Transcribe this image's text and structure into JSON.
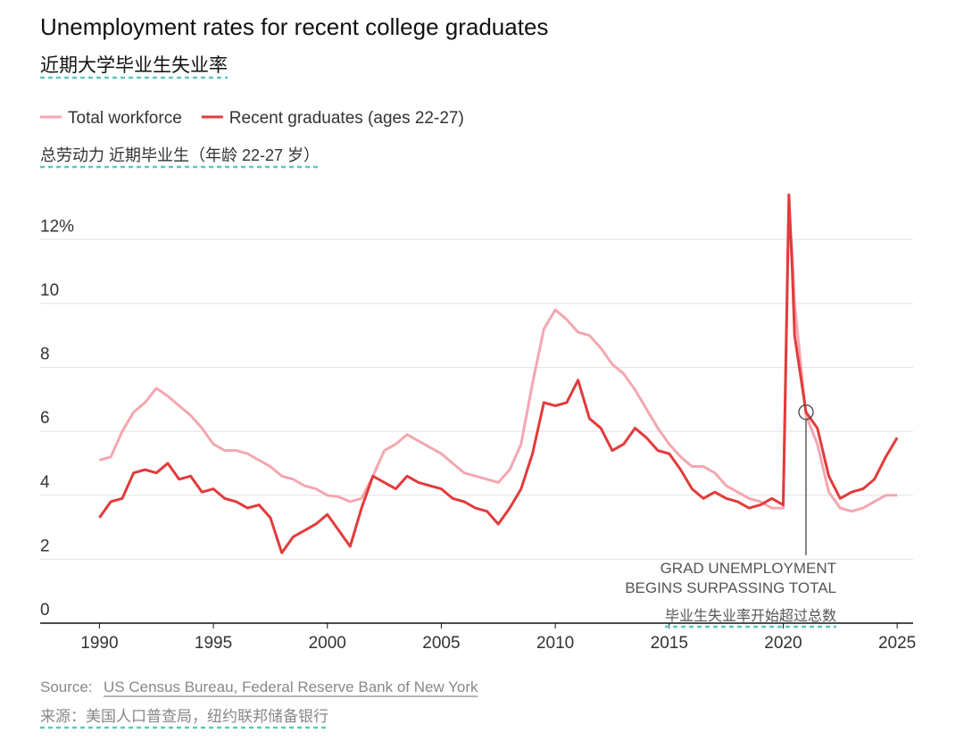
{
  "chart_data": {
    "type": "line",
    "title": "Unemployment rates for recent college graduates",
    "subtitle_zh": "近期大学毕业生失业率",
    "legend_zh": "总劳动力 近期毕业生（年龄 22-27 岁）",
    "x": [
      1990,
      1990.5,
      1991,
      1991.5,
      1992,
      1992.5,
      1993,
      1993.5,
      1994,
      1994.5,
      1995,
      1995.5,
      1996,
      1996.5,
      1997,
      1997.5,
      1998,
      1998.5,
      1999,
      1999.5,
      2000,
      2000.5,
      2001,
      2001.5,
      2002,
      2002.5,
      2003,
      2003.5,
      2004,
      2004.5,
      2005,
      2005.5,
      2006,
      2006.5,
      2007,
      2007.5,
      2008,
      2008.5,
      2009,
      2009.5,
      2010,
      2010.5,
      2011,
      2011.5,
      2012,
      2012.5,
      2013,
      2013.5,
      2014,
      2014.5,
      2015,
      2015.5,
      2016,
      2016.5,
      2017,
      2017.5,
      2018,
      2018.5,
      2019,
      2019.5,
      2020,
      2020.25,
      2020.4,
      2020.5,
      2021,
      2021.5,
      2022,
      2022.5,
      2023,
      2023.5,
      2024,
      2024.5,
      2025
    ],
    "series": [
      {
        "name": "Total workforce",
        "color": "#f4a7b0",
        "values": [
          5.1,
          5.2,
          6.0,
          6.6,
          6.9,
          7.35,
          7.1,
          6.8,
          6.5,
          6.1,
          5.6,
          5.4,
          5.4,
          5.3,
          5.1,
          4.9,
          4.6,
          4.5,
          4.3,
          4.2,
          4.0,
          3.95,
          3.8,
          3.9,
          4.6,
          5.4,
          5.6,
          5.9,
          5.7,
          5.5,
          5.3,
          5.0,
          4.7,
          4.6,
          4.5,
          4.4,
          4.8,
          5.6,
          7.5,
          9.2,
          9.8,
          9.5,
          9.1,
          9.0,
          8.6,
          8.1,
          7.8,
          7.3,
          6.7,
          6.1,
          5.6,
          5.2,
          4.9,
          4.9,
          4.7,
          4.3,
          4.1,
          3.9,
          3.8,
          3.6,
          3.6,
          13.0,
          11.5,
          10.0,
          6.5,
          5.6,
          4.1,
          3.6,
          3.5,
          3.6,
          3.8,
          4.0,
          4.0
        ]
      },
      {
        "name": "Recent graduates (ages 22-27)",
        "color": "#e23b3b",
        "values": [
          3.3,
          3.8,
          3.9,
          4.7,
          4.8,
          4.7,
          5.0,
          4.5,
          4.6,
          4.1,
          4.2,
          3.9,
          3.8,
          3.6,
          3.7,
          3.3,
          2.2,
          2.7,
          2.9,
          3.1,
          3.4,
          2.9,
          2.4,
          3.6,
          4.6,
          4.4,
          4.2,
          4.6,
          4.4,
          4.3,
          4.2,
          3.9,
          3.8,
          3.6,
          3.5,
          3.1,
          3.6,
          4.2,
          5.3,
          6.9,
          6.8,
          6.9,
          7.6,
          6.4,
          6.1,
          5.4,
          5.6,
          6.1,
          5.8,
          5.4,
          5.3,
          4.8,
          4.2,
          3.9,
          4.1,
          3.9,
          3.8,
          3.6,
          3.7,
          3.9,
          3.7,
          13.4,
          11.0,
          9.0,
          6.6,
          6.1,
          4.6,
          3.9,
          4.1,
          4.2,
          4.5,
          5.2,
          5.8
        ]
      }
    ],
    "xlim": [
      1987.4,
      2025.7
    ],
    "ylim": [
      0,
      13.6
    ],
    "xticks": [
      1990,
      1995,
      2000,
      2005,
      2010,
      2015,
      2020,
      2025
    ],
    "yticks": [
      0,
      2,
      4,
      6,
      8,
      10,
      {
        "value": 12,
        "label": "12%"
      }
    ],
    "grid": true,
    "annotation": {
      "x": 2021,
      "y": 6.6,
      "lines": [
        "GRAD UNEMPLOYMENT",
        "BEGINS SURPASSING TOTAL"
      ],
      "label_zh": "毕业生失业率开始超过总数"
    },
    "source_label": "Source:",
    "source_text": "US Census Bureau, Federal Reserve Bank of New York",
    "source_zh": "来源：美国人口普查局，纽约联邦储备银行"
  }
}
